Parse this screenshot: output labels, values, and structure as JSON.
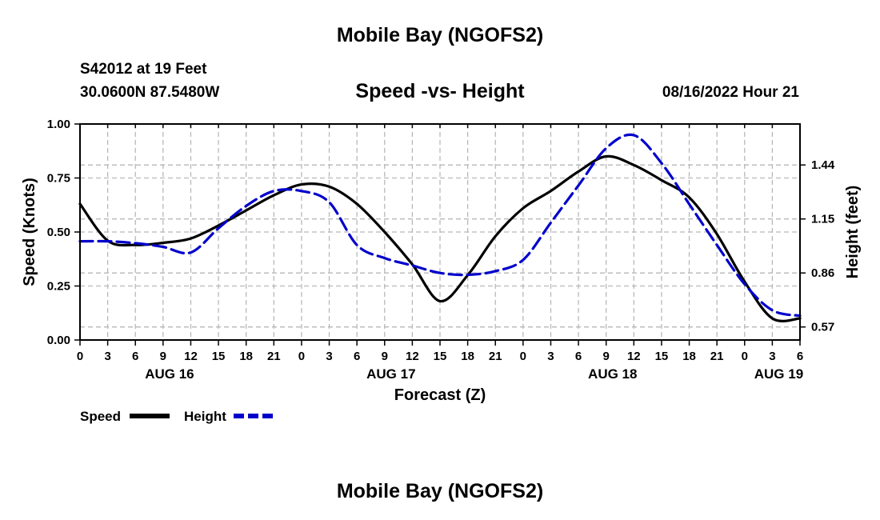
{
  "header": {
    "main_title": "Mobile Bay (NGOFS2)",
    "station_id": "S42012 at 19 Feet",
    "coordinates": "30.0600N  87.5480W",
    "chart_title": "Speed -vs- Height",
    "timestamp": "08/16/2022 Hour 21"
  },
  "footer": {
    "repeated_title": "Mobile Bay (NGOFS2)"
  },
  "colors": {
    "speed": "#000000",
    "height": "#0000cc",
    "grid": "#b8b8b8"
  },
  "chart_data": {
    "type": "line",
    "title": "Speed -vs- Height",
    "xlabel": "Forecast (Z)",
    "ylabel": "Speed (Knots)",
    "y2label": "Height (feet)",
    "x_unit": "hours since 2022-08-16 00Z",
    "xlim": [
      0,
      78
    ],
    "ylim": [
      0,
      1.0
    ],
    "y2lim": [
      0.5,
      1.66
    ],
    "grid": true,
    "legend": "bottom-left",
    "x_ticks": [
      0,
      3,
      6,
      9,
      12,
      15,
      18,
      21,
      24,
      27,
      30,
      33,
      36,
      39,
      42,
      45,
      48,
      51,
      54,
      57,
      60,
      63,
      66,
      69,
      72,
      75,
      78
    ],
    "x_tick_labels": [
      "0",
      "3",
      "6",
      "9",
      "12",
      "15",
      "18",
      "21",
      "0",
      "3",
      "6",
      "9",
      "12",
      "15",
      "18",
      "21",
      "0",
      "3",
      "6",
      "9",
      "12",
      "15",
      "18",
      "21",
      "0",
      "3",
      "6"
    ],
    "date_labels": [
      {
        "x": 9.7,
        "label": "AUG 16"
      },
      {
        "x": 33.7,
        "label": "AUG 17"
      },
      {
        "x": 57.7,
        "label": "AUG 18"
      },
      {
        "x": 75.7,
        "label": "AUG 19"
      }
    ],
    "y_ticks": [
      0,
      0.25,
      0.5,
      0.75,
      1.0
    ],
    "y_tick_labels": [
      "0.00",
      "0.25",
      "0.50",
      "0.75",
      "1.00"
    ],
    "y2_ticks": [
      0.57,
      0.86,
      1.15,
      1.44
    ],
    "y2_tick_labels": [
      "0.57",
      "0.86",
      "1.15",
      "1.44"
    ],
    "series": [
      {
        "name": "Speed",
        "axis": "left",
        "style": "solid",
        "x": [
          0,
          3,
          6,
          9,
          12,
          15,
          18,
          21,
          24,
          27,
          30,
          33,
          36,
          39,
          42,
          45,
          48,
          51,
          54,
          57,
          60,
          63,
          66,
          69,
          72,
          75,
          78
        ],
        "values": [
          0.63,
          0.46,
          0.44,
          0.45,
          0.47,
          0.53,
          0.6,
          0.67,
          0.72,
          0.71,
          0.63,
          0.5,
          0.35,
          0.18,
          0.3,
          0.48,
          0.61,
          0.69,
          0.78,
          0.85,
          0.81,
          0.74,
          0.66,
          0.49,
          0.27,
          0.1,
          0.1
        ]
      },
      {
        "name": "Height",
        "axis": "right",
        "style": "dashed",
        "x": [
          0,
          3,
          6,
          9,
          12,
          15,
          18,
          21,
          24,
          27,
          30,
          33,
          36,
          39,
          42,
          45,
          48,
          51,
          54,
          57,
          60,
          63,
          66,
          69,
          72,
          75,
          78
        ],
        "values": [
          1.03,
          1.03,
          1.02,
          1.0,
          0.97,
          1.1,
          1.22,
          1.3,
          1.3,
          1.24,
          1.01,
          0.94,
          0.9,
          0.86,
          0.85,
          0.87,
          0.93,
          1.13,
          1.33,
          1.53,
          1.6,
          1.45,
          1.23,
          1.01,
          0.8,
          0.66,
          0.63
        ]
      }
    ],
    "legend_entries": [
      "Speed",
      "Height"
    ]
  }
}
